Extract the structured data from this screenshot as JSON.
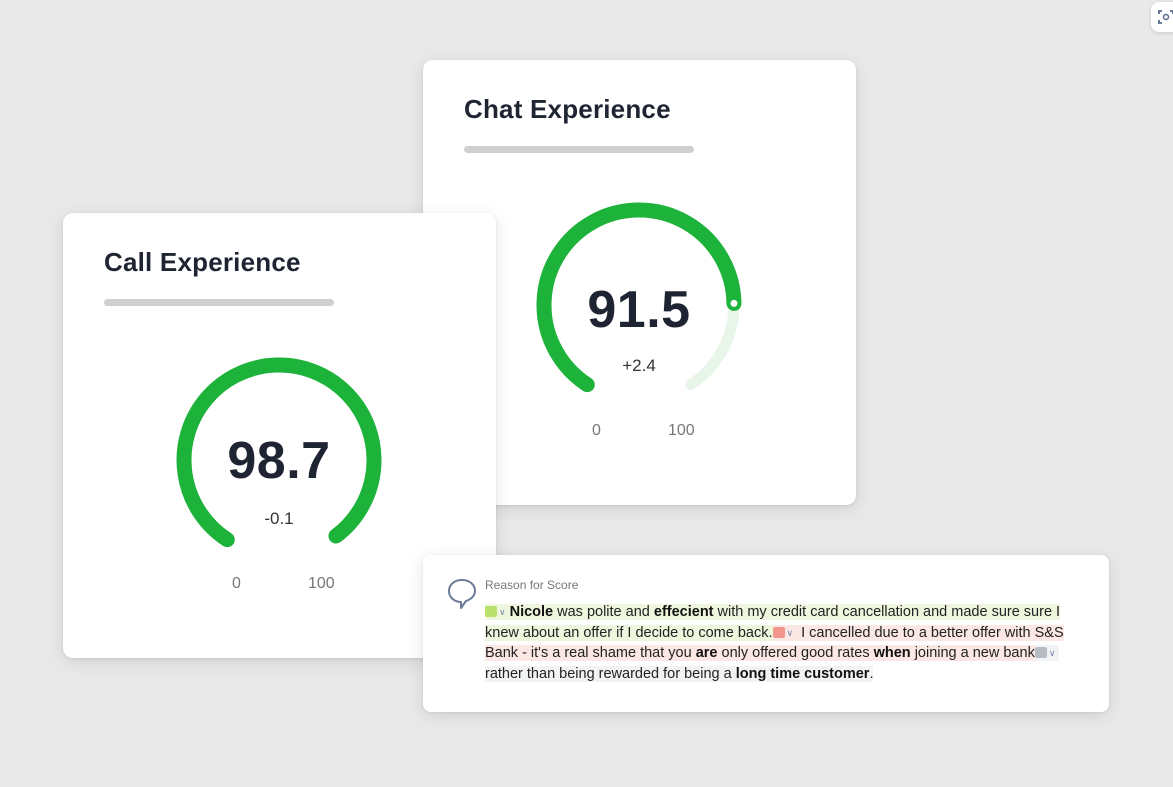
{
  "chat_card": {
    "title": "Chat Experience",
    "score": "91.5",
    "delta": "+2.4",
    "axis_min": "0",
    "axis_max": "100",
    "score_fraction": 0.915,
    "color": "#1db23a"
  },
  "call_card": {
    "title": "Call Experience",
    "score": "98.7",
    "delta": "-0.1",
    "axis_min": "0",
    "axis_max": "100",
    "score_fraction": 0.987,
    "color": "#1db23a"
  },
  "reason": {
    "heading": "Reason for Score",
    "icon": "speech-bubble-icon",
    "segments": {
      "s1_name": "Nicole",
      "s1_t1": " was polite and ",
      "s1_b1": "effecient",
      "s1_t2": " with my credit card cancellation and made sure sure I knew about an offer if I decide to come back.",
      "s2_t1": " I cancelled due to a better offer with S&S Bank - it's a real shame that you ",
      "s2_b1": "are",
      "s2_t2": " only offered good rates ",
      "s2_b2": "when",
      "s2_t3": " joining a new bank",
      "s3_t1": " rather than being rewarded for being a ",
      "s3_b1": "long time customer",
      "s3_t2": "."
    },
    "sentiment_colors": {
      "positive": "#b9df6d",
      "negative": "#f2958a",
      "neutral": "#b7bcc3"
    }
  },
  "corner_button": {
    "icon": "scan-icon"
  }
}
